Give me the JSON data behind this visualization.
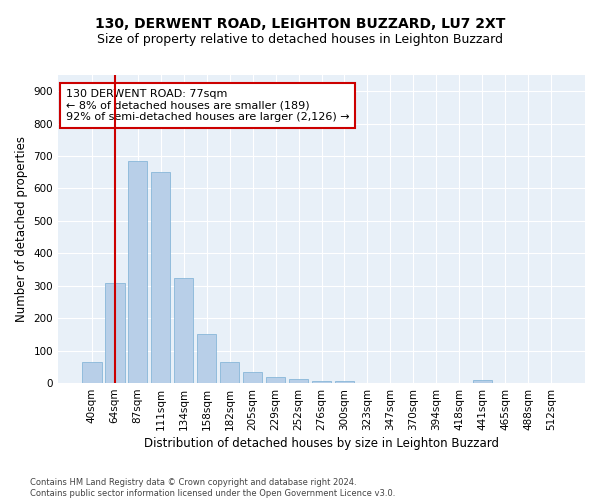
{
  "title": "130, DERWENT ROAD, LEIGHTON BUZZARD, LU7 2XT",
  "subtitle": "Size of property relative to detached houses in Leighton Buzzard",
  "xlabel": "Distribution of detached houses by size in Leighton Buzzard",
  "ylabel": "Number of detached properties",
  "categories": [
    "40sqm",
    "64sqm",
    "87sqm",
    "111sqm",
    "134sqm",
    "158sqm",
    "182sqm",
    "205sqm",
    "229sqm",
    "252sqm",
    "276sqm",
    "300sqm",
    "323sqm",
    "347sqm",
    "370sqm",
    "394sqm",
    "418sqm",
    "441sqm",
    "465sqm",
    "488sqm",
    "512sqm"
  ],
  "values": [
    65,
    310,
    685,
    650,
    325,
    150,
    65,
    33,
    20,
    12,
    7,
    7,
    0,
    0,
    0,
    0,
    0,
    8,
    0,
    0,
    0
  ],
  "bar_color": "#b8cfe8",
  "bar_edge_color": "#7aafd4",
  "background_color": "#e8f0f8",
  "grid_color": "#ffffff",
  "vline_color": "#cc0000",
  "annotation_lines": [
    "130 DERWENT ROAD: 77sqm",
    "← 8% of detached houses are smaller (189)",
    "92% of semi-detached houses are larger (2,126) →"
  ],
  "annotation_box_color": "#cc0000",
  "ylim": [
    0,
    950
  ],
  "yticks": [
    0,
    100,
    200,
    300,
    400,
    500,
    600,
    700,
    800,
    900
  ],
  "footer": "Contains HM Land Registry data © Crown copyright and database right 2024.\nContains public sector information licensed under the Open Government Licence v3.0.",
  "title_fontsize": 10,
  "subtitle_fontsize": 9,
  "tick_fontsize": 7.5,
  "ylabel_fontsize": 8.5,
  "xlabel_fontsize": 8.5,
  "footer_fontsize": 6,
  "ann_fontsize": 8
}
